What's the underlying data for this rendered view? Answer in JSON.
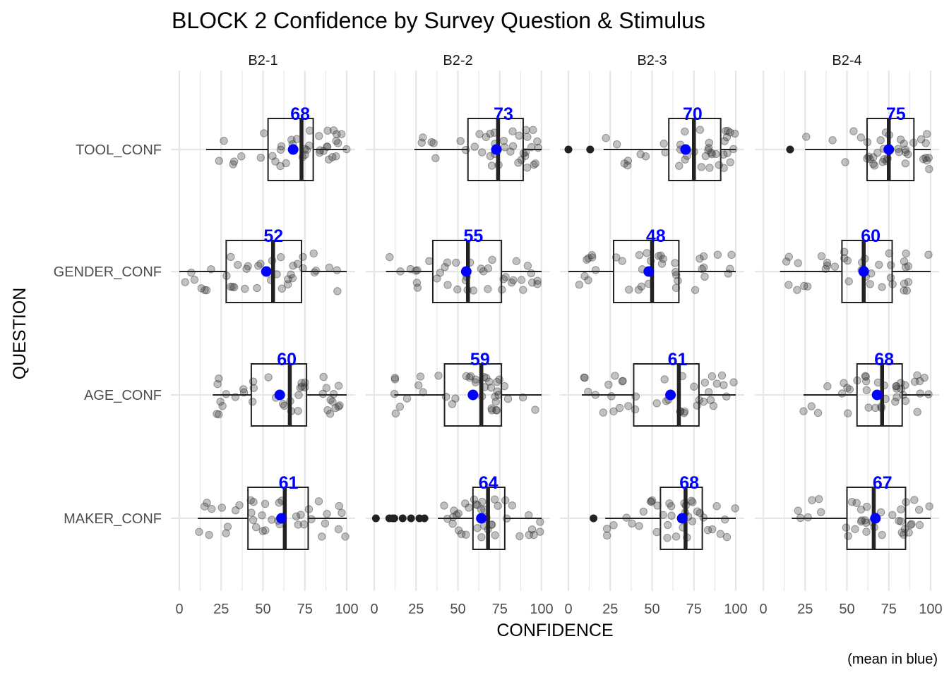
{
  "chart_data": {
    "type": "boxplot",
    "title": "BLOCK 2 Confidence by Survey Question & Stimulus",
    "xlabel": "CONFIDENCE",
    "ylabel": "QUESTION",
    "caption": "(mean in blue)",
    "xlim": [
      0,
      100
    ],
    "xticks": [
      0,
      25,
      50,
      75,
      100
    ],
    "grid": true,
    "facets": [
      "B2-1",
      "B2-2",
      "B2-3",
      "B2-4"
    ],
    "questions": [
      "TOOL_CONF",
      "GENDER_CONF",
      "AGE_CONF",
      "MAKER_CONF"
    ],
    "colors": {
      "mean": "#0000ff",
      "points": "#333333",
      "box": "#222222",
      "grid": "#e6e6e6"
    },
    "panels": [
      {
        "facet": "B2-1",
        "boxes": [
          {
            "question": "TOOL_CONF",
            "whisker_low": 16,
            "q1": 53,
            "median": 73,
            "q3": 80,
            "whisker_high": 100,
            "mean": 68,
            "mean_label": "68",
            "outliers": []
          },
          {
            "question": "GENDER_CONF",
            "whisker_low": 0,
            "q1": 28,
            "median": 56,
            "q3": 73,
            "whisker_high": 100,
            "mean": 52,
            "mean_label": "52",
            "outliers": []
          },
          {
            "question": "AGE_CONF",
            "whisker_low": 20,
            "q1": 43,
            "median": 66,
            "q3": 76,
            "whisker_high": 100,
            "mean": 60,
            "mean_label": "60",
            "outliers": []
          },
          {
            "question": "MAKER_CONF",
            "whisker_low": 11,
            "q1": 41,
            "median": 63,
            "q3": 77,
            "whisker_high": 100,
            "mean": 61,
            "mean_label": "61",
            "outliers": []
          }
        ]
      },
      {
        "facet": "B2-2",
        "boxes": [
          {
            "question": "TOOL_CONF",
            "whisker_low": 24,
            "q1": 56,
            "median": 74,
            "q3": 89,
            "whisker_high": 100,
            "mean": 73,
            "mean_label": "73",
            "outliers": []
          },
          {
            "question": "GENDER_CONF",
            "whisker_low": 7,
            "q1": 35,
            "median": 56,
            "q3": 76,
            "whisker_high": 100,
            "mean": 55,
            "mean_label": "55",
            "outliers": []
          },
          {
            "question": "AGE_CONF",
            "whisker_low": 12,
            "q1": 42,
            "median": 64,
            "q3": 76,
            "whisker_high": 100,
            "mean": 59,
            "mean_label": "59",
            "outliers": []
          },
          {
            "question": "MAKER_CONF",
            "whisker_low": 38,
            "q1": 59,
            "median": 68,
            "q3": 78,
            "whisker_high": 100,
            "mean": 64,
            "mean_label": "64",
            "outliers": [
              1,
              9,
              11,
              12,
              17,
              22,
              27,
              30
            ]
          }
        ]
      },
      {
        "facet": "B2-3",
        "boxes": [
          {
            "question": "TOOL_CONF",
            "whisker_low": 21,
            "q1": 60,
            "median": 75,
            "q3": 91,
            "whisker_high": 100,
            "mean": 70,
            "mean_label": "70",
            "outliers": [
              0,
              13
            ]
          },
          {
            "question": "GENDER_CONF",
            "whisker_low": 0,
            "q1": 27,
            "median": 50,
            "q3": 66,
            "whisker_high": 100,
            "mean": 48,
            "mean_label": "48",
            "outliers": []
          },
          {
            "question": "AGE_CONF",
            "whisker_low": 8,
            "q1": 39,
            "median": 66,
            "q3": 78,
            "whisker_high": 100,
            "mean": 61,
            "mean_label": "61",
            "outliers": []
          },
          {
            "question": "MAKER_CONF",
            "whisker_low": 22,
            "q1": 55,
            "median": 70,
            "q3": 80,
            "whisker_high": 100,
            "mean": 68,
            "mean_label": "68",
            "outliers": [
              15
            ]
          }
        ]
      },
      {
        "facet": "B2-4",
        "boxes": [
          {
            "question": "TOOL_CONF",
            "whisker_low": 25,
            "q1": 62,
            "median": 75,
            "q3": 90,
            "whisker_high": 100,
            "mean": 75,
            "mean_label": "75",
            "outliers": [
              16
            ]
          },
          {
            "question": "GENDER_CONF",
            "whisker_low": 10,
            "q1": 47,
            "median": 60,
            "q3": 77,
            "whisker_high": 100,
            "mean": 60,
            "mean_label": "60",
            "outliers": []
          },
          {
            "question": "AGE_CONF",
            "whisker_low": 24,
            "q1": 56,
            "median": 71,
            "q3": 83,
            "whisker_high": 100,
            "mean": 68,
            "mean_label": "68",
            "outliers": []
          },
          {
            "question": "MAKER_CONF",
            "whisker_low": 17,
            "q1": 50,
            "median": 66,
            "q3": 85,
            "whisker_high": 100,
            "mean": 67,
            "mean_label": "67",
            "outliers": []
          }
        ]
      }
    ]
  }
}
